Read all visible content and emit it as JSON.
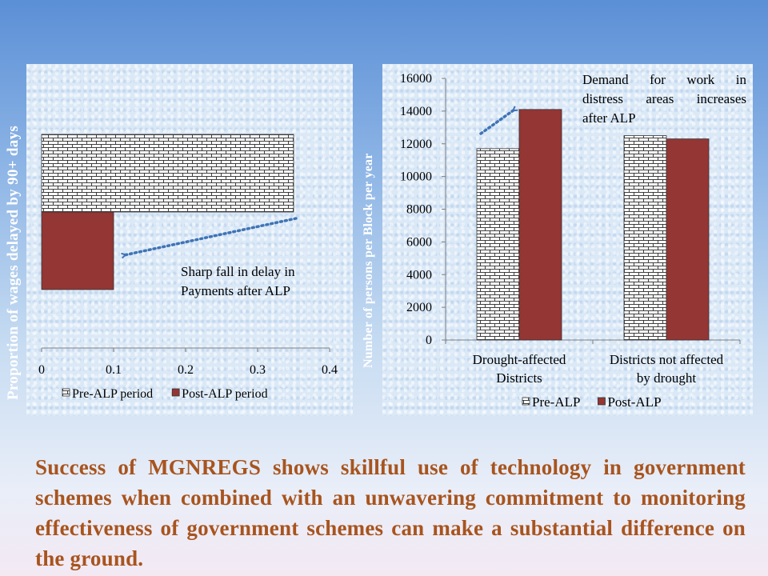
{
  "chart_data": [
    {
      "type": "bar",
      "orientation": "horizontal",
      "ylabel": "Proportion of wages delayed by 90+ days",
      "xlabel": "",
      "xlim": [
        0,
        0.4
      ],
      "xticks": [
        "0",
        "0.1",
        "0.2",
        "0.3",
        "0.4"
      ],
      "series": [
        {
          "name": "Pre-ALP period",
          "values": [
            0.35
          ],
          "color": "#ffffff",
          "pattern": "brick"
        },
        {
          "name": "Post-ALP period",
          "values": [
            0.1
          ],
          "color": "#943634"
        }
      ],
      "legend": "bottom",
      "annotation": "Sharp fall in delay in Payments after ALP"
    },
    {
      "type": "bar",
      "categories": [
        [
          "Drought-affected",
          "Districts"
        ],
        [
          "Districts not affected",
          "by drought"
        ]
      ],
      "series": [
        {
          "name": "Pre-ALP",
          "values": [
            11700,
            12500
          ],
          "color": "#ffffff",
          "pattern": "brick"
        },
        {
          "name": "Post-ALP",
          "values": [
            14100,
            12300
          ],
          "color": "#943634"
        }
      ],
      "ylabel": "Number of persons per Block per year",
      "xlabel": "",
      "ylim": [
        0,
        16000
      ],
      "yticks": [
        "0",
        "2000",
        "4000",
        "6000",
        "8000",
        "10000",
        "12000",
        "14000",
        "16000"
      ],
      "legend": "bottom",
      "annotation": [
        "Demand for work in",
        "distress areas increases",
        "after ALP"
      ]
    }
  ],
  "caption": "Success of MGNREGS shows skillful use of technology in government schemes when combined with an unwavering commitment to monitoring effectiveness of government schemes can make a substantial difference on the ground.",
  "colors": {
    "post": "#943634",
    "arrow": "#3f73b5",
    "caption": "#a8541e"
  }
}
